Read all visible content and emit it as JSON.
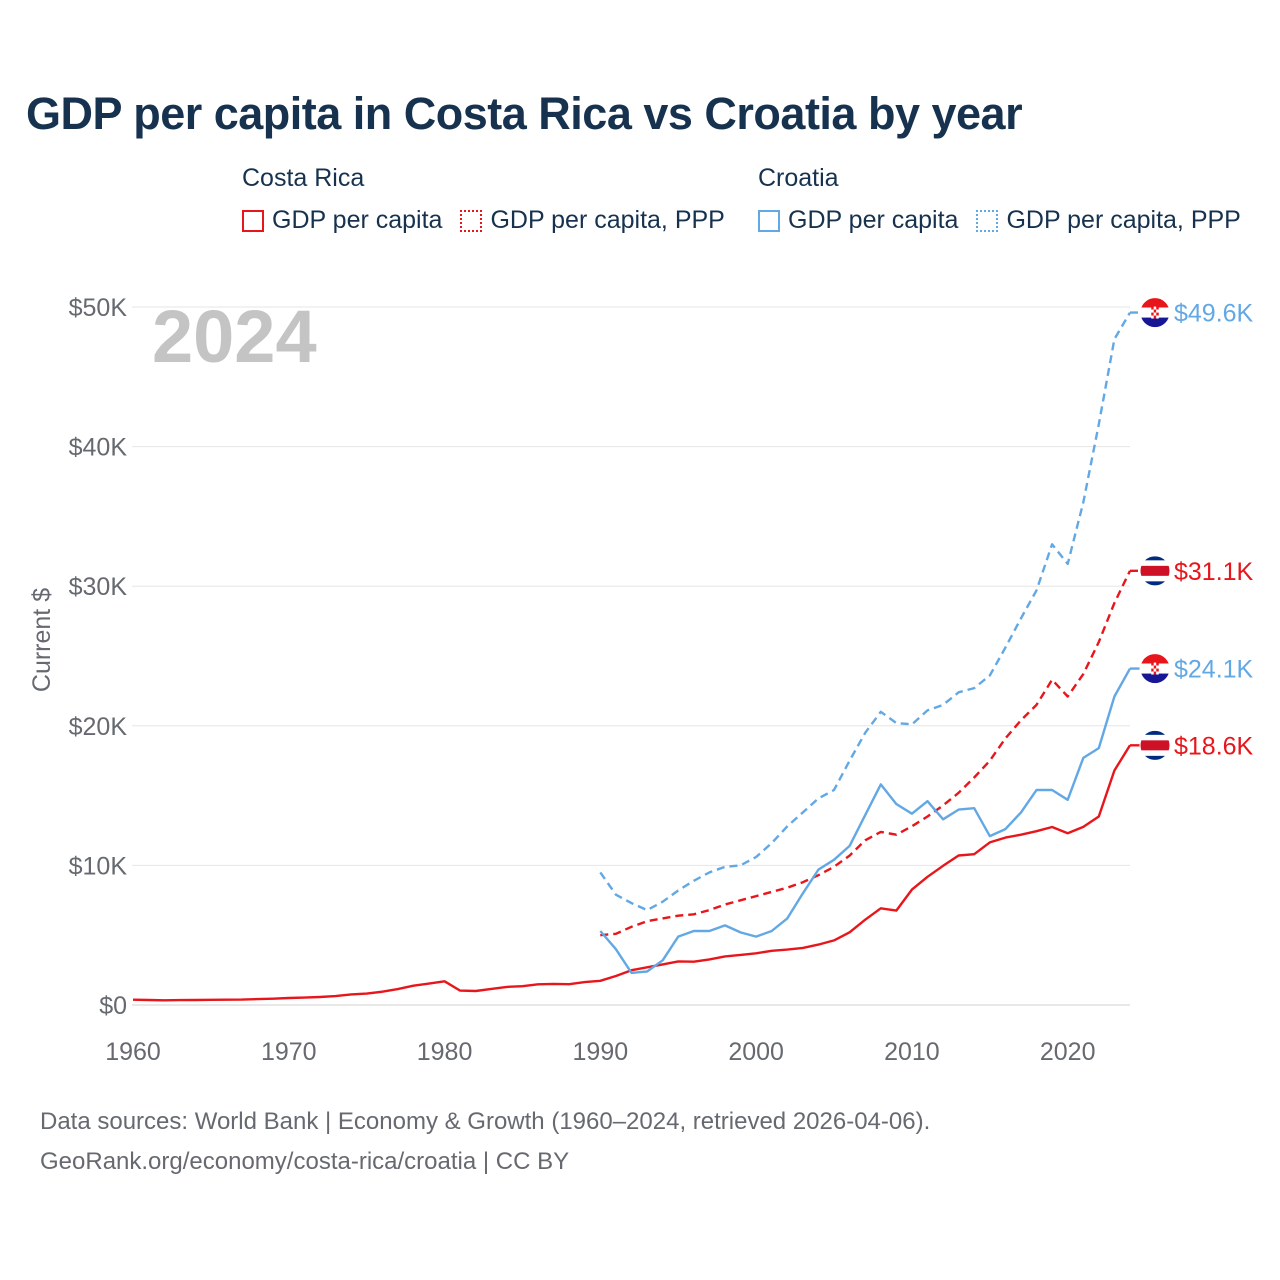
{
  "title": "GDP per capita in Costa Rica vs Croatia by year",
  "legend": {
    "groups": [
      {
        "name": "Costa Rica",
        "items": [
          "GDP per capita",
          "GDP per capita, PPP"
        ]
      },
      {
        "name": "Croatia",
        "items": [
          "GDP per capita",
          "GDP per capita, PPP"
        ]
      }
    ]
  },
  "year_label": "2024",
  "footer": {
    "line1": "Data sources: World Bank | Economy & Growth (1960–2024, retrieved 2026-04-06).",
    "line2": "GeoRank.org/economy/costa-rica/croatia | CC BY"
  },
  "colors": {
    "costa_rica": "#e8161b",
    "croatia": "#62a8e5",
    "grid": "#e6e6e6",
    "axis_text": "#666a70",
    "title": "#17324f",
    "year_watermark": "#c4c4c4"
  },
  "chart_data": {
    "type": "line",
    "title": "GDP per capita in Costa Rica vs Croatia by year",
    "xlabel": "",
    "ylabel": "Current $",
    "xlim": [
      1960,
      2024
    ],
    "ylim": [
      0,
      50000
    ],
    "x_ticks": [
      1960,
      1970,
      1980,
      1990,
      2000,
      2010,
      2020
    ],
    "y_ticks": [
      0,
      10000,
      20000,
      30000,
      40000,
      50000
    ],
    "y_tick_labels": [
      "$0",
      "$10K",
      "$20K",
      "$30K",
      "$40K",
      "$50K"
    ],
    "grid": true,
    "series": [
      {
        "name": "Costa Rica GDP per capita",
        "country": "Costa Rica",
        "metric": "GDP per capita",
        "color": "#e8161b",
        "dash": "solid",
        "end_label": "$18.6K",
        "flag": "costa-rica-flag",
        "x": [
          1960,
          1961,
          1962,
          1963,
          1964,
          1965,
          1966,
          1967,
          1968,
          1969,
          1970,
          1971,
          1972,
          1973,
          1974,
          1975,
          1976,
          1977,
          1978,
          1979,
          1980,
          1981,
          1982,
          1983,
          1984,
          1985,
          1986,
          1987,
          1988,
          1989,
          1990,
          1991,
          1992,
          1993,
          1994,
          1995,
          1996,
          1997,
          1998,
          1999,
          2000,
          2001,
          2002,
          2003,
          2004,
          2005,
          2006,
          2007,
          2008,
          2009,
          2010,
          2011,
          2012,
          2013,
          2014,
          2015,
          2016,
          2017,
          2018,
          2019,
          2020,
          2021,
          2022,
          2023,
          2024
        ],
        "values": [
          380,
          360,
          340,
          350,
          360,
          370,
          380,
          390,
          420,
          450,
          500,
          530,
          570,
          640,
          760,
          820,
          950,
          1140,
          1380,
          1530,
          1700,
          1030,
          1000,
          1150,
          1300,
          1350,
          1480,
          1510,
          1490,
          1640,
          1730,
          2080,
          2490,
          2700,
          2910,
          3120,
          3100,
          3270,
          3480,
          3590,
          3700,
          3880,
          3970,
          4090,
          4330,
          4630,
          5210,
          6110,
          6930,
          6760,
          8270,
          9180,
          9970,
          10710,
          10800,
          11650,
          11990,
          12200,
          12450,
          12750,
          12310,
          12760,
          13500,
          16800,
          18600
        ]
      },
      {
        "name": "Costa Rica GDP per capita, PPP",
        "country": "Costa Rica",
        "metric": "GDP per capita, PPP",
        "color": "#e8161b",
        "dash": "dashed",
        "end_label": "$31.1K",
        "flag": "costa-rica-flag",
        "x": [
          1990,
          1991,
          1992,
          1993,
          1994,
          1995,
          1996,
          1997,
          1998,
          1999,
          2000,
          2001,
          2002,
          2003,
          2004,
          2005,
          2006,
          2007,
          2008,
          2009,
          2010,
          2011,
          2012,
          2013,
          2014,
          2015,
          2016,
          2017,
          2018,
          2019,
          2020,
          2021,
          2022,
          2023,
          2024
        ],
        "values": [
          5000,
          5100,
          5600,
          6000,
          6200,
          6400,
          6500,
          6800,
          7200,
          7500,
          7800,
          8100,
          8400,
          8800,
          9300,
          9900,
          10700,
          11800,
          12400,
          12200,
          12800,
          13500,
          14300,
          15200,
          16300,
          17500,
          19100,
          20400,
          21500,
          23300,
          22100,
          23700,
          26000,
          28800,
          31100
        ]
      },
      {
        "name": "Croatia GDP per capita",
        "country": "Croatia",
        "metric": "GDP per capita",
        "color": "#62a8e5",
        "dash": "solid",
        "end_label": "$24.1K",
        "flag": "croatia-flag",
        "x": [
          1990,
          1991,
          1992,
          1993,
          1994,
          1995,
          1996,
          1997,
          1998,
          1999,
          2000,
          2001,
          2002,
          2003,
          2004,
          2005,
          2006,
          2007,
          2008,
          2009,
          2010,
          2011,
          2012,
          2013,
          2014,
          2015,
          2016,
          2017,
          2018,
          2019,
          2020,
          2021,
          2022,
          2023,
          2024
        ],
        "values": [
          5300,
          4000,
          2300,
          2400,
          3200,
          4900,
          5300,
          5300,
          5700,
          5200,
          4900,
          5300,
          6200,
          8000,
          9700,
          10400,
          11400,
          13600,
          15800,
          14400,
          13700,
          14600,
          13300,
          14000,
          14100,
          12100,
          12600,
          13800,
          15400,
          15400,
          14700,
          17700,
          18400,
          22100,
          24100
        ]
      },
      {
        "name": "Croatia GDP per capita, PPP",
        "country": "Croatia",
        "metric": "GDP per capita, PPP",
        "color": "#62a8e5",
        "dash": "dashed",
        "end_label": "$49.6K",
        "flag": "croatia-flag",
        "x": [
          1990,
          1991,
          1992,
          1993,
          1994,
          1995,
          1996,
          1997,
          1998,
          1999,
          2000,
          2001,
          2002,
          2003,
          2004,
          2005,
          2006,
          2007,
          2008,
          2009,
          2010,
          2011,
          2012,
          2013,
          2014,
          2015,
          2016,
          2017,
          2018,
          2019,
          2020,
          2021,
          2022,
          2023,
          2024
        ],
        "values": [
          9500,
          7900,
          7300,
          6800,
          7400,
          8200,
          8900,
          9500,
          9900,
          10000,
          10600,
          11600,
          12800,
          13800,
          14800,
          15400,
          17500,
          19500,
          21000,
          20200,
          20100,
          21100,
          21500,
          22400,
          22700,
          23600,
          25600,
          27700,
          29700,
          33000,
          31600,
          36000,
          41600,
          47700,
          49600
        ]
      }
    ]
  }
}
